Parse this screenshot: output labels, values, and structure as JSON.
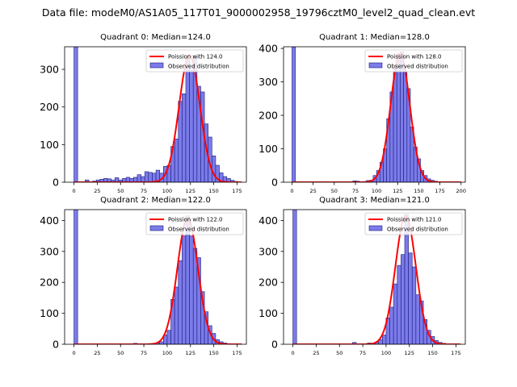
{
  "figure_title": "Data file: modeM0/AS1A05_117T01_9000002958_19796cztM0_level2_quad_clean.evt",
  "colors": {
    "bar_fill": "#7b7bea",
    "bar_edge": "#1c1c7a",
    "poisson_line": "#ff0000",
    "axis": "#000000"
  },
  "chart_data": [
    {
      "type": "bar",
      "title": "Quadrant 0: Median=124.0",
      "legend": {
        "placement": "top-right",
        "poisson_label": "Poission with 124.0",
        "observed_label": "Observed distribution"
      },
      "xlim": [
        -10,
        185
      ],
      "ylim": [
        0,
        360
      ],
      "xticks": [
        0,
        25,
        50,
        75,
        100,
        125,
        150,
        175
      ],
      "yticks": [
        0,
        100,
        200,
        300
      ],
      "bin_width": 4,
      "bins": [
        {
          "x": 0,
          "y": 360
        },
        {
          "x": 12,
          "y": 6
        },
        {
          "x": 20,
          "y": 3
        },
        {
          "x": 24,
          "y": 6
        },
        {
          "x": 28,
          "y": 8
        },
        {
          "x": 32,
          "y": 10
        },
        {
          "x": 36,
          "y": 9
        },
        {
          "x": 40,
          "y": 6
        },
        {
          "x": 44,
          "y": 12
        },
        {
          "x": 48,
          "y": 6
        },
        {
          "x": 52,
          "y": 10
        },
        {
          "x": 56,
          "y": 13
        },
        {
          "x": 60,
          "y": 10
        },
        {
          "x": 64,
          "y": 13
        },
        {
          "x": 68,
          "y": 20
        },
        {
          "x": 72,
          "y": 15
        },
        {
          "x": 76,
          "y": 28
        },
        {
          "x": 80,
          "y": 26
        },
        {
          "x": 84,
          "y": 24
        },
        {
          "x": 88,
          "y": 32
        },
        {
          "x": 92,
          "y": 24
        },
        {
          "x": 96,
          "y": 42
        },
        {
          "x": 100,
          "y": 45
        },
        {
          "x": 104,
          "y": 95
        },
        {
          "x": 108,
          "y": 115
        },
        {
          "x": 112,
          "y": 215
        },
        {
          "x": 116,
          "y": 235
        },
        {
          "x": 120,
          "y": 330
        },
        {
          "x": 124,
          "y": 298
        },
        {
          "x": 128,
          "y": 335
        },
        {
          "x": 132,
          "y": 255
        },
        {
          "x": 136,
          "y": 240
        },
        {
          "x": 140,
          "y": 155
        },
        {
          "x": 144,
          "y": 120
        },
        {
          "x": 148,
          "y": 70
        },
        {
          "x": 152,
          "y": 45
        },
        {
          "x": 156,
          "y": 25
        },
        {
          "x": 160,
          "y": 15
        },
        {
          "x": 164,
          "y": 10
        },
        {
          "x": 168,
          "y": 5
        },
        {
          "x": 172,
          "y": 2
        }
      ],
      "poisson": {
        "mean": 124.0,
        "peak": 338,
        "sigma": 11.1
      }
    },
    {
      "type": "bar",
      "title": "Quadrant 1: Median=128.0",
      "legend": {
        "placement": "top-right",
        "poisson_label": "Poission with 128.0",
        "observed_label": "Observed distribution"
      },
      "xlim": [
        -10,
        205
      ],
      "ylim": [
        0,
        405
      ],
      "xticks": [
        0,
        25,
        50,
        75,
        100,
        125,
        150,
        175,
        200
      ],
      "yticks": [
        0,
        100,
        200,
        300,
        400
      ],
      "bin_width": 4,
      "bins": [
        {
          "x": 0,
          "y": 405
        },
        {
          "x": 72,
          "y": 4
        },
        {
          "x": 76,
          "y": 3
        },
        {
          "x": 84,
          "y": 2
        },
        {
          "x": 88,
          "y": 5
        },
        {
          "x": 92,
          "y": 6
        },
        {
          "x": 96,
          "y": 20
        },
        {
          "x": 100,
          "y": 35
        },
        {
          "x": 104,
          "y": 60
        },
        {
          "x": 108,
          "y": 100
        },
        {
          "x": 112,
          "y": 190
        },
        {
          "x": 116,
          "y": 270
        },
        {
          "x": 120,
          "y": 340
        },
        {
          "x": 124,
          "y": 385
        },
        {
          "x": 128,
          "y": 390
        },
        {
          "x": 132,
          "y": 330
        },
        {
          "x": 136,
          "y": 280
        },
        {
          "x": 140,
          "y": 165
        },
        {
          "x": 144,
          "y": 105
        },
        {
          "x": 148,
          "y": 70
        },
        {
          "x": 152,
          "y": 35
        },
        {
          "x": 156,
          "y": 20
        },
        {
          "x": 160,
          "y": 10
        },
        {
          "x": 164,
          "y": 6
        },
        {
          "x": 168,
          "y": 3
        }
      ],
      "poisson": {
        "mean": 128.0,
        "peak": 385,
        "sigma": 11.3
      }
    },
    {
      "type": "bar",
      "title": "Quadrant 2: Median=122.0",
      "legend": {
        "placement": "top-right",
        "poisson_label": "Poission with 122.0",
        "observed_label": "Observed distribution"
      },
      "xlim": [
        -10,
        185
      ],
      "ylim": [
        0,
        435
      ],
      "xticks": [
        0,
        25,
        50,
        75,
        100,
        125,
        150,
        175
      ],
      "yticks": [
        0,
        100,
        200,
        300,
        400
      ],
      "bin_width": 4,
      "bins": [
        {
          "x": 0,
          "y": 435
        },
        {
          "x": 64,
          "y": 3
        },
        {
          "x": 80,
          "y": 2
        },
        {
          "x": 84,
          "y": 3
        },
        {
          "x": 88,
          "y": 5
        },
        {
          "x": 92,
          "y": 8
        },
        {
          "x": 96,
          "y": 30
        },
        {
          "x": 100,
          "y": 45
        },
        {
          "x": 104,
          "y": 145
        },
        {
          "x": 108,
          "y": 185
        },
        {
          "x": 112,
          "y": 270
        },
        {
          "x": 116,
          "y": 350
        },
        {
          "x": 120,
          "y": 415
        },
        {
          "x": 124,
          "y": 350
        },
        {
          "x": 128,
          "y": 310
        },
        {
          "x": 132,
          "y": 280
        },
        {
          "x": 136,
          "y": 170
        },
        {
          "x": 140,
          "y": 105
        },
        {
          "x": 144,
          "y": 60
        },
        {
          "x": 148,
          "y": 35
        },
        {
          "x": 152,
          "y": 15
        },
        {
          "x": 156,
          "y": 8
        },
        {
          "x": 160,
          "y": 4
        },
        {
          "x": 164,
          "y": 2
        }
      ],
      "poisson": {
        "mean": 122.0,
        "peak": 408,
        "sigma": 11.0
      }
    },
    {
      "type": "bar",
      "title": "Quadrant 3: Median=121.0",
      "legend": {
        "placement": "top-right",
        "poisson_label": "Poission with 121.0",
        "observed_label": "Observed distribution"
      },
      "xlim": [
        -10,
        185
      ],
      "ylim": [
        0,
        435
      ],
      "xticks": [
        0,
        25,
        50,
        75,
        100,
        125,
        150,
        175
      ],
      "yticks": [
        0,
        100,
        200,
        300,
        400
      ],
      "bin_width": 4,
      "bins": [
        {
          "x": 0,
          "y": 435
        },
        {
          "x": 64,
          "y": 6
        },
        {
          "x": 80,
          "y": 4
        },
        {
          "x": 88,
          "y": 6
        },
        {
          "x": 92,
          "y": 15
        },
        {
          "x": 96,
          "y": 30
        },
        {
          "x": 100,
          "y": 85
        },
        {
          "x": 104,
          "y": 120
        },
        {
          "x": 108,
          "y": 195
        },
        {
          "x": 112,
          "y": 255
        },
        {
          "x": 116,
          "y": 290
        },
        {
          "x": 120,
          "y": 420
        },
        {
          "x": 124,
          "y": 295
        },
        {
          "x": 128,
          "y": 250
        },
        {
          "x": 132,
          "y": 160
        },
        {
          "x": 136,
          "y": 140
        },
        {
          "x": 140,
          "y": 80
        },
        {
          "x": 144,
          "y": 45
        },
        {
          "x": 148,
          "y": 25
        },
        {
          "x": 152,
          "y": 12
        },
        {
          "x": 156,
          "y": 6
        },
        {
          "x": 160,
          "y": 3
        }
      ],
      "poisson": {
        "mean": 121.0,
        "peak": 415,
        "sigma": 11.0
      }
    }
  ]
}
